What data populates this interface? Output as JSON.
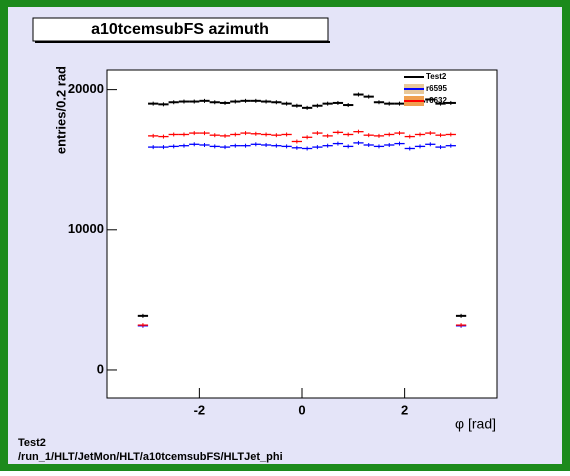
{
  "chart_data": {
    "type": "errorpoints",
    "title": "a10tcemsubFS azimuth",
    "xlabel": "φ [rad]",
    "ylabel": "entries/0.2 rad",
    "annotations": [
      "Test2",
      "/run_1/HLT/JetMon/HLT/a10tcemsubFS/HLTJet_phi"
    ],
    "x": [
      -3.1,
      -2.9,
      -2.7,
      -2.5,
      -2.3,
      -2.1,
      -1.9,
      -1.7,
      -1.5,
      -1.3,
      -1.1,
      -0.9,
      -0.7,
      -0.5,
      -0.3,
      -0.1,
      0.1,
      0.3,
      0.5,
      0.7,
      0.9,
      1.1,
      1.3,
      1.5,
      1.7,
      1.9,
      2.1,
      2.3,
      2.5,
      2.7,
      2.9,
      3.1
    ],
    "series": [
      {
        "name": "Test2",
        "color": "#000000",
        "values": [
          3860,
          19000,
          18950,
          19100,
          19150,
          19150,
          19200,
          19100,
          19050,
          19150,
          19200,
          19200,
          19150,
          19100,
          19000,
          18850,
          18700,
          18850,
          19000,
          19050,
          18900,
          19650,
          19500,
          19100,
          19000,
          19000,
          19050,
          19150,
          19300,
          19000,
          19050,
          3860
        ]
      },
      {
        "name": "r6595",
        "color": "#0000ff",
        "fill": "#e8c89a",
        "values": [
          3150,
          15900,
          15900,
          15950,
          16000,
          16100,
          16050,
          15950,
          15900,
          16000,
          16000,
          16100,
          16050,
          16000,
          15950,
          15850,
          15800,
          15900,
          16000,
          16150,
          15950,
          16200,
          16050,
          15950,
          16050,
          16150,
          15800,
          15950,
          16100,
          15900,
          16000,
          3150
        ]
      },
      {
        "name": "r6632",
        "color": "#ff0000",
        "fill": "#f0a050",
        "values": [
          3200,
          16700,
          16650,
          16800,
          16800,
          16900,
          16900,
          16750,
          16700,
          16800,
          16900,
          16850,
          16800,
          16750,
          16800,
          16300,
          16600,
          16900,
          16700,
          16950,
          16800,
          17000,
          16750,
          16700,
          16800,
          16900,
          16650,
          16800,
          16900,
          16750,
          16800,
          3200
        ]
      }
    ],
    "xlim": [
      -3.8,
      3.8
    ],
    "xticks": [
      -2,
      0,
      2
    ],
    "ylim": [
      -2000,
      21400
    ],
    "yticks": [
      0,
      10000,
      20000
    ]
  }
}
